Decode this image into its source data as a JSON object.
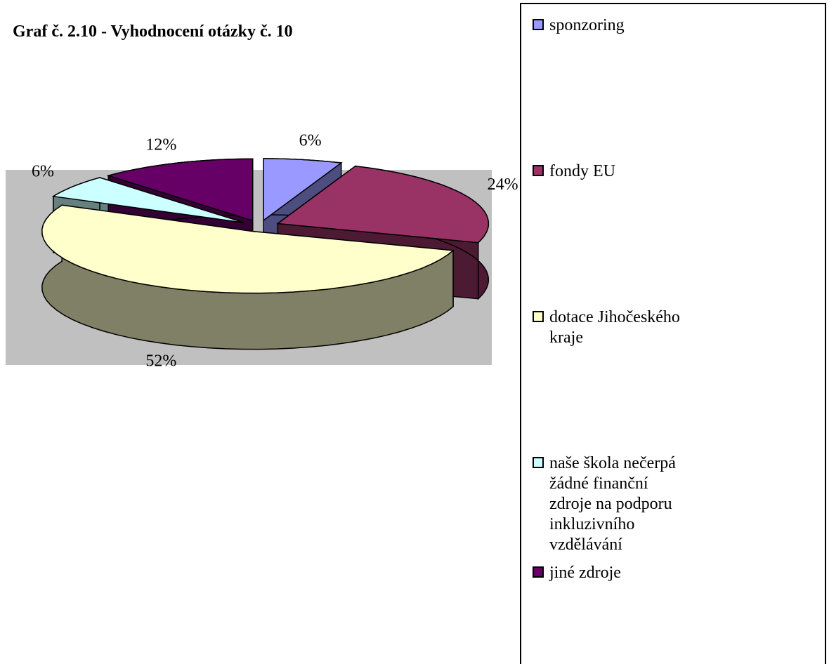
{
  "chart_data": {
    "type": "pie",
    "title": "Graf č. 2.10 - Vyhodnocení otázky č. 10",
    "categories": [
      "sponzoring",
      "fondy EU",
      "dotace Jihočeského kraje",
      "naše škola nečerpá žádné finanční zdroje na podporu inkluzivního vzdělávání",
      "jiné zdroje"
    ],
    "values": [
      6,
      24,
      52,
      6,
      12
    ],
    "value_labels": [
      "6%",
      "24%",
      "52%",
      "6%",
      "12%"
    ],
    "colors": [
      "#9999ff",
      "#993366",
      "#ffffcc",
      "#ccffff",
      "#660066"
    ],
    "legend": "right"
  }
}
